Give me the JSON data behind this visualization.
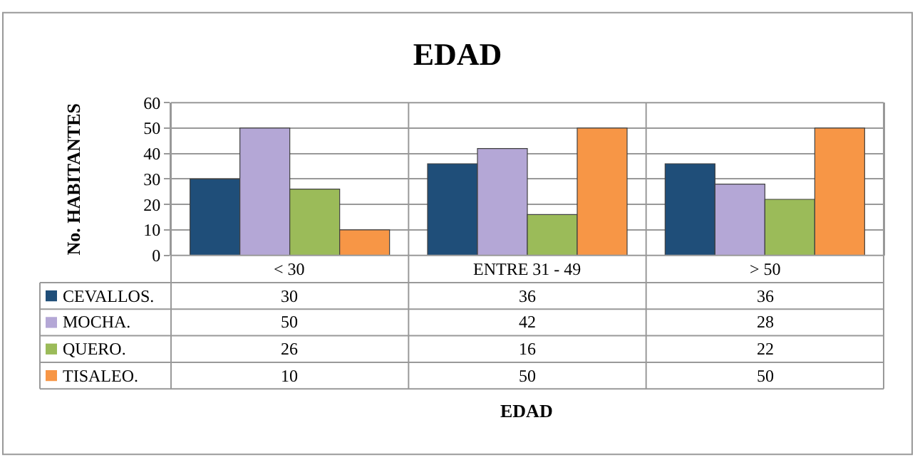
{
  "chart_data": {
    "type": "bar",
    "title": "EDAD",
    "annotations": [
      "EDAD"
    ],
    "ylabel": "No. HABITANTES",
    "categories": [
      "< 30",
      "ENTRE 31 - 49",
      "> 50"
    ],
    "series": [
      {
        "name": "CEVALLOS.",
        "color": "#1f4e79",
        "values": [
          30,
          36,
          36
        ]
      },
      {
        "name": "MOCHA.",
        "color": "#b4a7d6",
        "values": [
          50,
          42,
          28
        ]
      },
      {
        "name": "QUERO.",
        "color": "#9bbb59",
        "values": [
          26,
          16,
          22
        ]
      },
      {
        "name": "TISALEO.",
        "color": "#f79646",
        "values": [
          10,
          50,
          50
        ]
      }
    ],
    "ylim": [
      0,
      60
    ],
    "yticks": [
      0,
      10,
      20,
      30,
      40,
      50,
      60
    ],
    "grid": true,
    "data_labels": true,
    "legend": "bottom left"
  }
}
